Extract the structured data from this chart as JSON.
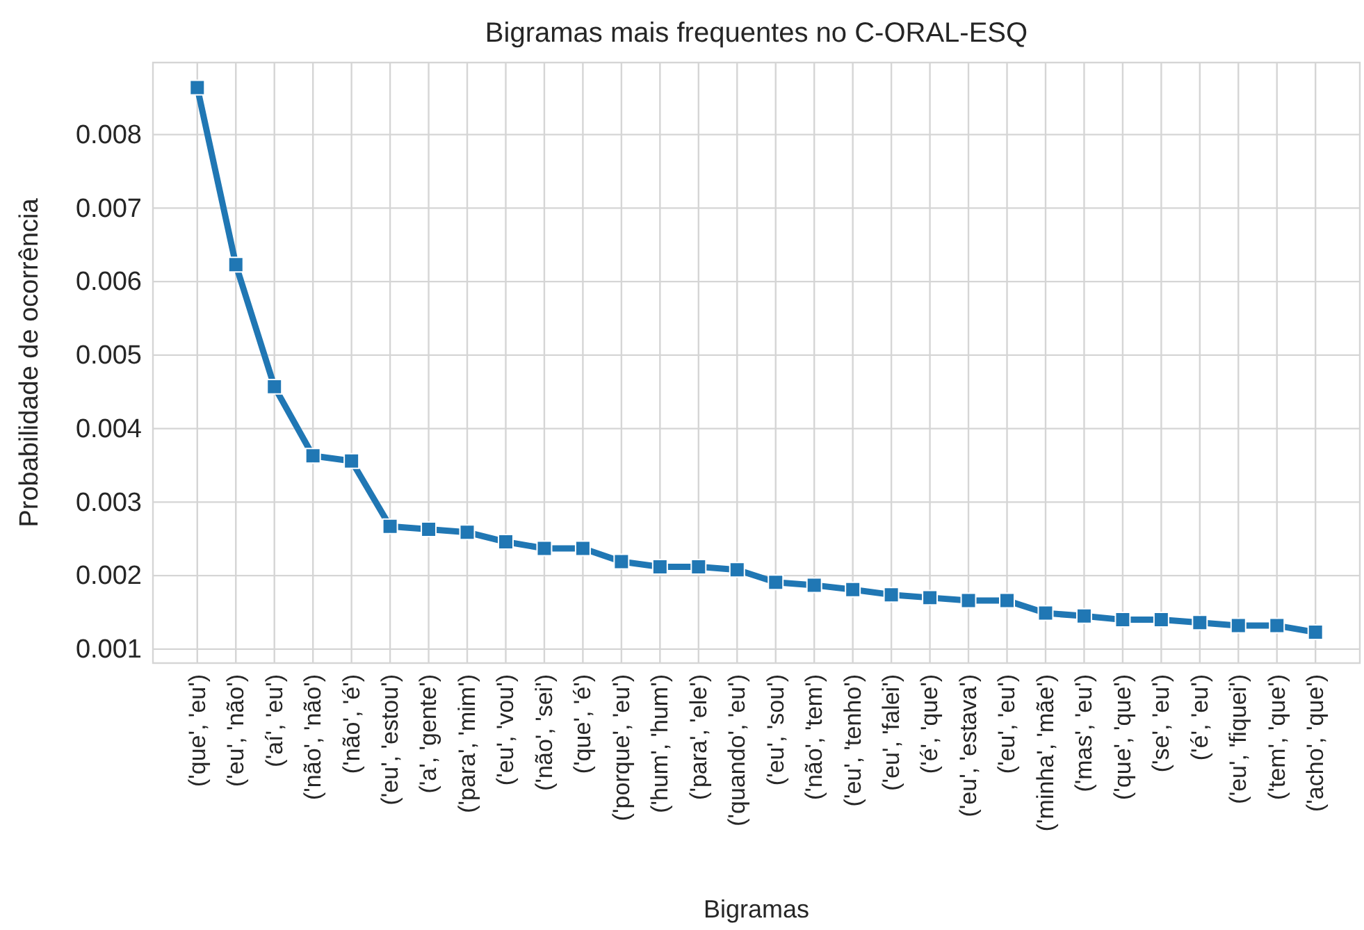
{
  "chart_data": {
    "type": "line",
    "title": "Bigramas mais frequentes no C-ORAL-ESQ",
    "xlabel": "Bigramas",
    "ylabel": "Probabilidade de ocorrência",
    "categories": [
      "('que', 'eu')",
      "('eu', 'não')",
      "('aí', 'eu')",
      "('não', 'não')",
      "('não', 'é')",
      "('eu', 'estou')",
      "('a', 'gente')",
      "('para', 'mim')",
      "('eu', 'vou')",
      "('não', 'sei')",
      "('que', 'é')",
      "('porque', 'eu')",
      "('hum', 'hum')",
      "('para', 'ele')",
      "('quando', 'eu')",
      "('eu', 'sou')",
      "('não', 'tem')",
      "('eu', 'tenho')",
      "('eu', 'falei')",
      "('é', 'que')",
      "('eu', 'estava')",
      "('eu', 'eu')",
      "('minha', 'mãe')",
      "('mas', 'eu')",
      "('que', 'que')",
      "('se', 'eu')",
      "('é', 'eu')",
      "('eu', 'fiquei')",
      "('tem', 'que')",
      "('acho', 'que')"
    ],
    "series": [
      {
        "color": "#2077b4",
        "values": [
          0.00864,
          0.00623,
          0.00457,
          0.00363,
          0.00356,
          0.00267,
          0.00263,
          0.00259,
          0.00246,
          0.00237,
          0.00237,
          0.00219,
          0.00212,
          0.00212,
          0.00208,
          0.00191,
          0.00187,
          0.00181,
          0.00174,
          0.0017,
          0.00166,
          0.00166,
          0.00149,
          0.00145,
          0.0014,
          0.0014,
          0.00136,
          0.00132,
          0.00132,
          0.00123
        ]
      }
    ],
    "ylim": [
      0.00081,
      0.00898
    ],
    "yticks": [
      0.001,
      0.002,
      0.003,
      0.004,
      0.005,
      0.006,
      0.007,
      0.008
    ],
    "grid": true,
    "marker": "square",
    "line_style": "solid"
  }
}
